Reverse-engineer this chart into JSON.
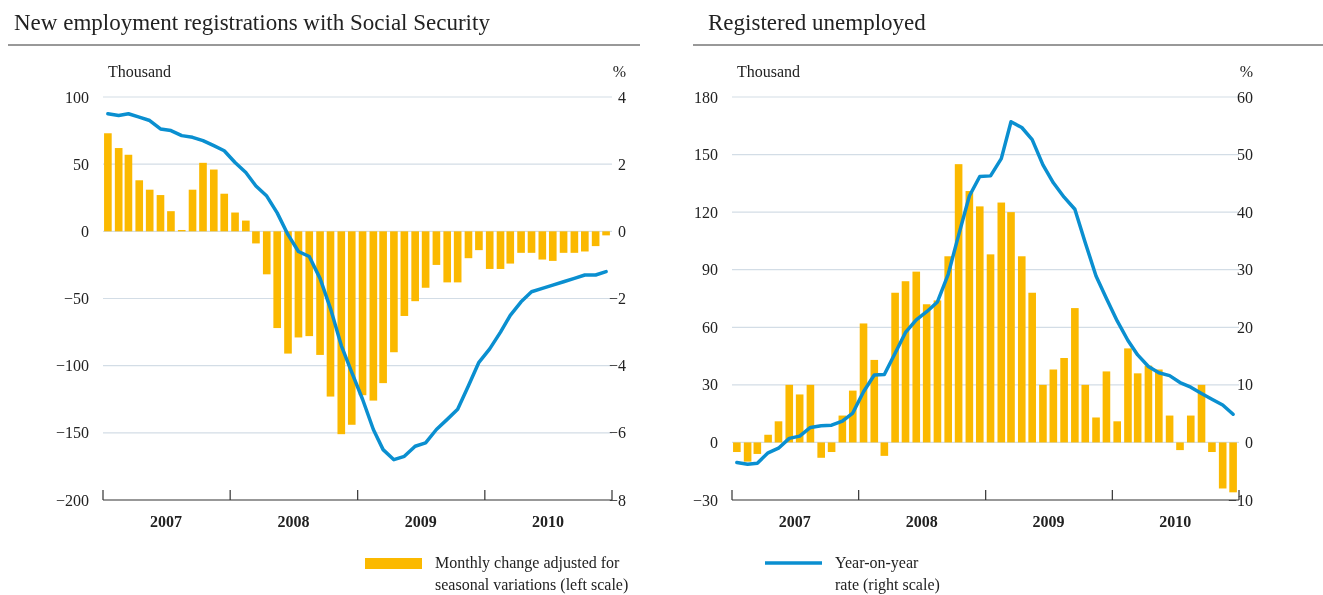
{
  "chart_data": [
    {
      "type": "bar",
      "title": "New employment registrations with Social Security",
      "ylabel": "Thousand",
      "y2label": "%",
      "grid": "y",
      "legend": "bottom",
      "x": [
        "2007-01-15",
        "2007-02-15",
        "2007-03-15",
        "2007-04-15",
        "2007-05-15",
        "2007-06-15",
        "2007-07-15",
        "2007-08-15",
        "2007-09-15",
        "2007-10-15",
        "2007-11-15",
        "2007-12-15",
        "2008-01-15",
        "2008-02-15",
        "2008-03-15",
        "2008-04-15",
        "2008-05-15",
        "2008-06-15",
        "2008-07-15",
        "2008-08-15",
        "2008-09-15",
        "2008-10-15",
        "2008-11-15",
        "2008-12-15",
        "2009-01-15",
        "2009-02-15",
        "2009-03-15",
        "2009-04-15",
        "2009-05-15",
        "2009-06-15",
        "2009-07-15",
        "2009-08-15",
        "2009-09-15",
        "2009-10-15",
        "2009-11-15",
        "2009-12-15",
        "2010-01-15",
        "2010-02-15",
        "2010-03-15",
        "2010-04-15",
        "2010-05-15",
        "2010-06-15",
        "2010-07-15",
        "2010-08-15",
        "2010-09-15",
        "2010-10-15",
        "2010-11-15",
        "2010-12-15"
      ],
      "xlim": [
        "2007-01-01",
        "2011-01-01"
      ],
      "xticks": [
        {
          "value": "2007-01-01",
          "label": null
        },
        {
          "value": "2007-07-01",
          "label": "2007"
        },
        {
          "value": "2008-01-01",
          "label": null
        },
        {
          "value": "2008-07-01",
          "label": "2008"
        },
        {
          "value": "2009-01-01",
          "label": null
        },
        {
          "value": "2009-07-01",
          "label": "2009"
        },
        {
          "value": "2010-01-01",
          "label": null
        },
        {
          "value": "2010-07-01",
          "label": "2010"
        },
        {
          "value": "2011-01-01",
          "label": null
        }
      ],
      "ylim": [
        -200,
        100
      ],
      "yticks": [
        -200,
        -150,
        -100,
        -50,
        0,
        50,
        100
      ],
      "y2lim": [
        -8,
        4
      ],
      "y2ticks": [
        -8,
        -6,
        -4,
        -2,
        0,
        2,
        4
      ],
      "series": [
        {
          "name": "Monthly change adjusted for seasonal variations (left scale)",
          "color": "#fbb900",
          "values": [
            73,
            62,
            57,
            38,
            31,
            27,
            15,
            1,
            31,
            51,
            46,
            28,
            14,
            8,
            -9,
            -32,
            -72,
            -91,
            -79,
            -78,
            -92,
            -123,
            -151,
            -144,
            -122,
            -126,
            -113,
            -90,
            -63,
            -52,
            -42,
            -25,
            -38,
            -38,
            -20,
            -14,
            -28,
            -28,
            -24,
            -16,
            -16,
            -21,
            -22,
            -16,
            -16,
            -15,
            -11,
            -3
          ]
        },
        {
          "type": "line",
          "axis": "y2",
          "color": "#0a8fd0",
          "values": [
            3.5,
            3.45,
            3.5,
            3.4,
            3.3,
            3.05,
            3.0,
            2.85,
            2.8,
            2.7,
            2.55,
            2.4,
            2.05,
            1.75,
            1.35,
            1.05,
            0.55,
            -0.1,
            -0.6,
            -0.75,
            -1.4,
            -2.3,
            -3.4,
            -4.2,
            -5.0,
            -5.9,
            -6.5,
            -6.8,
            -6.7,
            -6.4,
            -6.3,
            -5.9,
            -5.6,
            -5.3,
            -4.6,
            -3.9,
            -3.5,
            -3.0,
            -2.5,
            -2.1,
            -1.8,
            -1.7,
            -1.6,
            -1.5,
            -1.4,
            -1.3,
            -1.3,
            -1.2
          ]
        }
      ]
    },
    {
      "type": "bar",
      "title": "Registered unemployed",
      "ylabel": "Thousand",
      "y2label": "%",
      "grid": "y",
      "legend": "bottom",
      "x": [
        "2007-01-15",
        "2007-02-15",
        "2007-03-15",
        "2007-04-15",
        "2007-05-15",
        "2007-06-15",
        "2007-07-15",
        "2007-08-15",
        "2007-09-15",
        "2007-10-15",
        "2007-11-15",
        "2007-12-15",
        "2008-01-15",
        "2008-02-15",
        "2008-03-15",
        "2008-04-15",
        "2008-05-15",
        "2008-06-15",
        "2008-07-15",
        "2008-08-15",
        "2008-09-15",
        "2008-10-15",
        "2008-11-15",
        "2008-12-15",
        "2009-01-15",
        "2009-02-15",
        "2009-03-15",
        "2009-04-15",
        "2009-05-15",
        "2009-06-15",
        "2009-07-15",
        "2009-08-15",
        "2009-09-15",
        "2009-10-15",
        "2009-11-15",
        "2009-12-15",
        "2010-01-15",
        "2010-02-15",
        "2010-03-15",
        "2010-04-15",
        "2010-05-15",
        "2010-06-15",
        "2010-07-15",
        "2010-08-15",
        "2010-09-15",
        "2010-10-15",
        "2010-11-15",
        "2010-12-15"
      ],
      "xlim": [
        "2007-01-01",
        "2011-01-01"
      ],
      "xticks": [
        {
          "value": "2007-01-01",
          "label": null
        },
        {
          "value": "2007-07-01",
          "label": "2007"
        },
        {
          "value": "2008-01-01",
          "label": null
        },
        {
          "value": "2008-07-01",
          "label": "2008"
        },
        {
          "value": "2009-01-01",
          "label": null
        },
        {
          "value": "2009-07-01",
          "label": "2009"
        },
        {
          "value": "2010-01-01",
          "label": null
        },
        {
          "value": "2010-07-01",
          "label": "2010"
        },
        {
          "value": "2011-01-01",
          "label": null
        }
      ],
      "ylim": [
        -30,
        180
      ],
      "yticks": [
        -30,
        0,
        30,
        60,
        90,
        120,
        150,
        180
      ],
      "y2lim": [
        -10,
        60
      ],
      "y2ticks": [
        -10,
        0,
        10,
        20,
        30,
        40,
        50,
        60
      ],
      "series": [
        {
          "color": "#fbb900",
          "values": [
            -5,
            -10,
            -6,
            4,
            11,
            30,
            25,
            30,
            -8,
            -5,
            14,
            27,
            62,
            43,
            -7,
            78,
            84,
            89,
            72,
            74,
            97,
            145,
            131,
            123,
            98,
            125,
            120,
            97,
            78,
            30,
            38,
            44,
            70,
            30,
            13,
            37,
            11,
            49,
            36,
            40,
            38,
            14,
            -4,
            14,
            30,
            -5,
            -24,
            -26
          ]
        },
        {
          "name": "Year-on-year rate (right scale)",
          "type": "line",
          "axis": "y2",
          "color": "#0a8fd0",
          "values": [
            -3.5,
            -3.8,
            -3.6,
            -1.8,
            -1.0,
            0.7,
            1.1,
            2.6,
            2.9,
            3.0,
            3.7,
            5.1,
            8.8,
            11.7,
            11.8,
            15.5,
            19.1,
            21.3,
            22.7,
            24.4,
            29.2,
            36,
            42.8,
            46.2,
            46.3,
            49.3,
            55.7,
            54.7,
            52.6,
            48.2,
            45.1,
            42.6,
            40.5,
            34.7,
            28.9,
            25,
            21.1,
            17.7,
            15.2,
            13.2,
            12.1,
            11.6,
            10.4,
            9.6,
            8.5,
            7.5,
            6.5,
            4.9
          ]
        }
      ]
    }
  ]
}
